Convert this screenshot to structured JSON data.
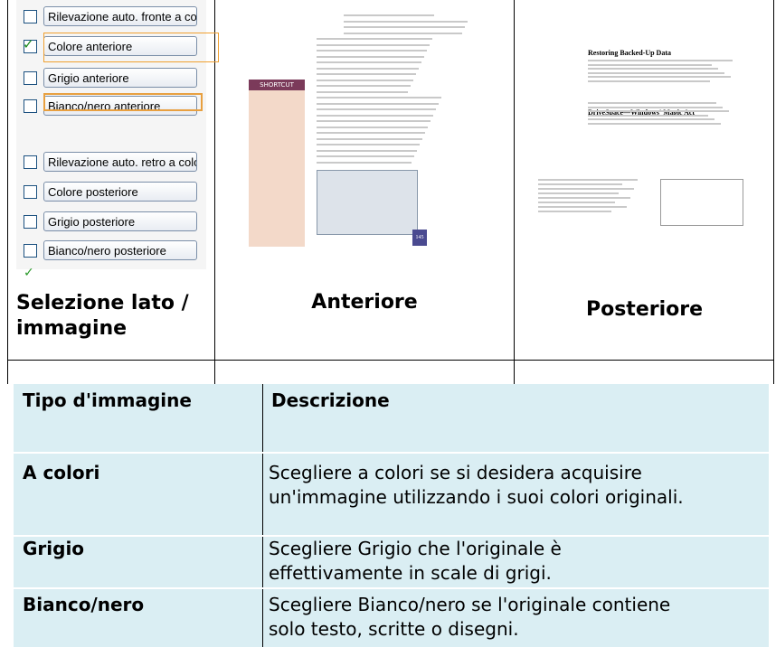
{
  "options": [
    "Rilevazione auto. fronte a colo",
    "Colore anteriore",
    "Grigio anteriore",
    "Bianco/nero anteriore",
    "Rilevazione auto. retro a color",
    "Colore posteriore",
    "Grigio posteriore",
    "Bianco/nero posteriore"
  ],
  "thumbnails": {
    "shortcut": "SHORTCUT",
    "heading_1": "Restoring Backed-Up Data",
    "heading_2": "DriveSpace—Windows' Magic Act",
    "page_number": "145"
  },
  "captions": [
    "Selezione lato / immagine",
    "Anteriore",
    "Posteriore"
  ],
  "table": {
    "header": [
      "Tipo d'immagine",
      "Descrizione"
    ],
    "rows": [
      [
        "A colori",
        "Scegliere a colori se si desidera acquisire un'immagine utilizzando i suoi colori originali."
      ],
      [
        "Grigio",
        "Scegliere Grigio che l'originale è effettivamente in scale di grigi."
      ],
      [
        "Bianco/nero",
        "Scegliere Bianco/nero se l'originale contiene solo testo, scritte o disegni."
      ]
    ]
  }
}
